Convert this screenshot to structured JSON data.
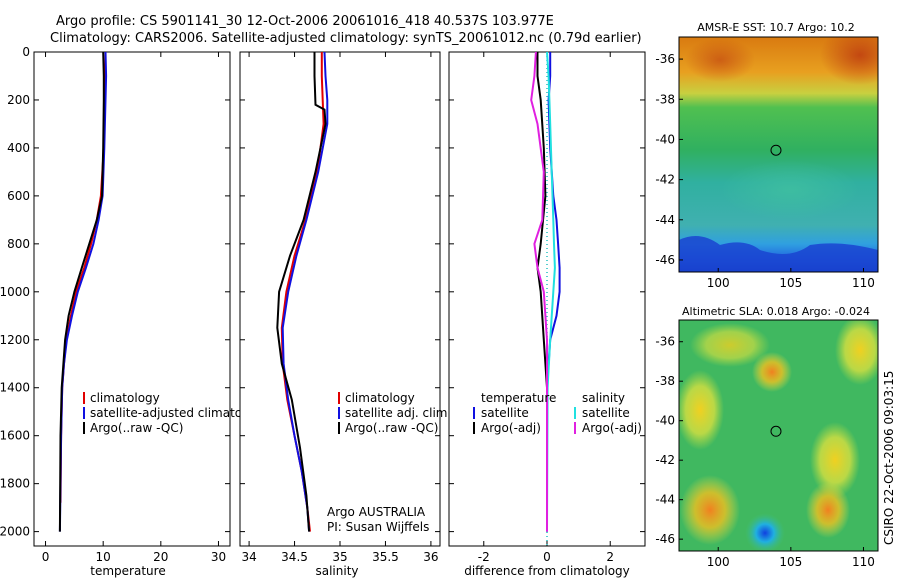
{
  "header": {
    "line1": "Argo profile: CS 5901141_30 12-Oct-2006 20061016_418 40.537S 103.977E",
    "line2": "Climatology: CARS2006. Satellite-adjusted climatology: synTS_20061012.nc (0.79d earlier)"
  },
  "colors": {
    "climatology": "#e00000",
    "satellite": "#1010e0",
    "argo": "#000000",
    "sal_satellite": "#20e0e0",
    "sal_argo": "#e020e0",
    "dots": "#20c0c0"
  },
  "chart_data": [
    {
      "id": "temperature",
      "type": "line",
      "xlabel": "temperature",
      "ylabel": "",
      "xlim": [
        -2,
        32
      ],
      "ylim": [
        2060,
        0
      ],
      "xticks": [
        "0",
        "10",
        "20",
        "30"
      ],
      "xtick_values": [
        0,
        10,
        20,
        30
      ],
      "yticks": [
        "0",
        "200",
        "400",
        "600",
        "800",
        "1000",
        "1200",
        "1400",
        "1600",
        "1800",
        "2000"
      ],
      "ytick_values": [
        0,
        200,
        400,
        600,
        800,
        1000,
        1200,
        1400,
        1600,
        1800,
        2000
      ],
      "legend": [
        "climatology",
        "satellite-adjusted climatology",
        "Argo(..raw -QC)"
      ],
      "series": [
        {
          "name": "climatology",
          "color": "#e00000",
          "x": [
            10.4,
            10.4,
            10.3,
            10.1,
            9.6,
            8.9,
            7.9,
            6.7,
            5.3,
            4.4,
            3.6,
            3.2,
            2.9,
            2.7,
            2.6
          ],
          "y": [
            0,
            100,
            200,
            400,
            600,
            700,
            800,
            900,
            1000,
            1100,
            1200,
            1300,
            1400,
            1600,
            1880
          ]
        },
        {
          "name": "satellite-adjusted climatology",
          "color": "#1010e0",
          "x": [
            10.4,
            10.5,
            10.4,
            10.2,
            9.9,
            9.2,
            8.3,
            7.0,
            5.6,
            4.6,
            3.7,
            3.2,
            2.9,
            2.7,
            2.5
          ],
          "y": [
            0,
            100,
            200,
            400,
            600,
            700,
            800,
            900,
            1000,
            1100,
            1200,
            1300,
            1400,
            1600,
            2000
          ]
        },
        {
          "name": "Argo(..raw -QC)",
          "color": "#000000",
          "x": [
            10.0,
            10.1,
            10.1,
            10.0,
            9.8,
            8.9,
            7.6,
            6.3,
            5.0,
            4.0,
            3.4,
            3.1,
            2.8,
            2.6,
            2.5
          ],
          "y": [
            0,
            100,
            200,
            400,
            600,
            700,
            800,
            900,
            1000,
            1100,
            1200,
            1300,
            1400,
            1600,
            2000
          ]
        }
      ]
    },
    {
      "id": "salinity",
      "type": "line",
      "xlabel": "salinity",
      "ylabel": "",
      "xlim": [
        33.9,
        36.1
      ],
      "ylim": [
        2060,
        0
      ],
      "xticks": [
        "34",
        "34.5",
        "35",
        "35.5",
        "36"
      ],
      "xtick_values": [
        34,
        34.5,
        35,
        35.5,
        36
      ],
      "legend": [
        "climatology",
        "satellite adj. clim.",
        "Argo(..raw -QC)"
      ],
      "annotations": [
        "Argo AUSTRALIA",
        "PI: Susan Wijffels"
      ],
      "series": [
        {
          "name": "climatology",
          "color": "#e00000",
          "x": [
            34.8,
            34.8,
            34.81,
            34.82,
            34.75,
            34.62,
            34.5,
            34.41,
            34.36,
            34.37,
            34.42,
            34.5,
            34.58,
            34.64,
            34.67
          ],
          "y": [
            0,
            100,
            200,
            300,
            500,
            700,
            850,
            1000,
            1150,
            1300,
            1450,
            1600,
            1750,
            1900,
            2000
          ]
        },
        {
          "name": "satellite adj. clim.",
          "color": "#1010e0",
          "x": [
            34.83,
            34.84,
            34.86,
            34.86,
            34.76,
            34.63,
            34.52,
            34.43,
            34.37,
            34.38,
            34.43,
            34.5,
            34.58,
            34.64,
            34.66
          ],
          "y": [
            0,
            100,
            200,
            300,
            500,
            700,
            850,
            1000,
            1150,
            1300,
            1450,
            1600,
            1750,
            1900,
            2000
          ]
        },
        {
          "name": "Argo(..raw -QC)",
          "color": "#000000",
          "x": [
            34.72,
            34.72,
            34.73,
            34.83,
            34.84,
            34.73,
            34.6,
            34.45,
            34.33,
            34.31,
            34.36,
            34.47,
            34.56,
            34.63,
            34.66
          ],
          "y": [
            0,
            100,
            220,
            240,
            300,
            500,
            700,
            850,
            1000,
            1150,
            1300,
            1450,
            1650,
            1850,
            2000
          ]
        }
      ]
    },
    {
      "id": "difference",
      "type": "line",
      "xlabel": "difference from climatology",
      "ylabel": "",
      "xlim": [
        -3.1,
        3.1
      ],
      "ylim": [
        2060,
        0
      ],
      "xticks": [
        "-2",
        "0",
        "2"
      ],
      "xtick_values": [
        -2,
        0,
        2
      ],
      "legend_temperature": [
        "temperature",
        "satellite",
        "Argo(-adj)"
      ],
      "legend_salinity": [
        "salinity",
        "satellite",
        "Argo(-adj)"
      ],
      "series": [
        {
          "name": "temperature satellite",
          "color": "#1010e0",
          "x": [
            0.1,
            0.1,
            0.05,
            0.1,
            0.2,
            0.3,
            0.35,
            0.4,
            0.4,
            0.3,
            0.1,
            0.0,
            0.0
          ],
          "y": [
            0,
            100,
            200,
            400,
            600,
            700,
            800,
            900,
            1000,
            1100,
            1200,
            1400,
            2000
          ]
        },
        {
          "name": "temperature Argo(-adj)",
          "color": "#000000",
          "x": [
            -0.3,
            -0.3,
            -0.2,
            -0.1,
            -0.05,
            -0.2,
            -0.3,
            -0.2,
            -0.1,
            0.0,
            0.0
          ],
          "y": [
            0,
            100,
            200,
            400,
            600,
            800,
            900,
            1000,
            1200,
            1400,
            2000
          ]
        },
        {
          "name": "salinity satellite",
          "color": "#20e0e0",
          "x": [
            0.0,
            0.05,
            0.1,
            0.15,
            0.2,
            0.22,
            0.25,
            0.2,
            0.1,
            0.02,
            0.0
          ],
          "y": [
            0,
            100,
            300,
            500,
            700,
            800,
            900,
            1000,
            1200,
            1400,
            2000
          ]
        },
        {
          "name": "salinity Argo(-adj)",
          "color": "#e020e0",
          "x": [
            -0.35,
            -0.4,
            -0.5,
            -0.3,
            -0.1,
            -0.15,
            -0.4,
            -0.3,
            -0.1,
            0.0,
            0.0
          ],
          "y": [
            0,
            100,
            200,
            300,
            500,
            700,
            800,
            900,
            1000,
            1200,
            2000
          ]
        }
      ]
    },
    {
      "id": "sst_map",
      "type": "heatmap",
      "title": "AMSR-E SST: 10.7  Argo: 10.2",
      "xlim": [
        97.3,
        111.0
      ],
      "ylim": [
        -46.6,
        -34.9
      ],
      "xticks": [
        "100",
        "105",
        "110"
      ],
      "xtick_values": [
        100,
        105,
        110
      ],
      "yticks": [
        "-36",
        "-38",
        "-40",
        "-42",
        "-44",
        "-46"
      ],
      "ytick_values": [
        -36,
        -38,
        -40,
        -42,
        -44,
        -46
      ],
      "marker": {
        "lon": 103.977,
        "lat": -40.537
      }
    },
    {
      "id": "sla_map",
      "type": "heatmap",
      "title": "Altimetric SLA: 0.018  Argo: -0.024",
      "xlim": [
        97.3,
        111.0
      ],
      "ylim": [
        -46.6,
        -34.9
      ],
      "xticks": [
        "100",
        "105",
        "110"
      ],
      "xtick_values": [
        100,
        105,
        110
      ],
      "yticks": [
        "-36",
        "-38",
        "-40",
        "-42",
        "-44",
        "-46"
      ],
      "ytick_values": [
        -36,
        -38,
        -40,
        -42,
        -44,
        -46
      ],
      "marker": {
        "lon": 103.977,
        "lat": -40.537
      }
    }
  ],
  "footer": {
    "credit": "CSIRO 22-Oct-2006 09:03:15"
  }
}
